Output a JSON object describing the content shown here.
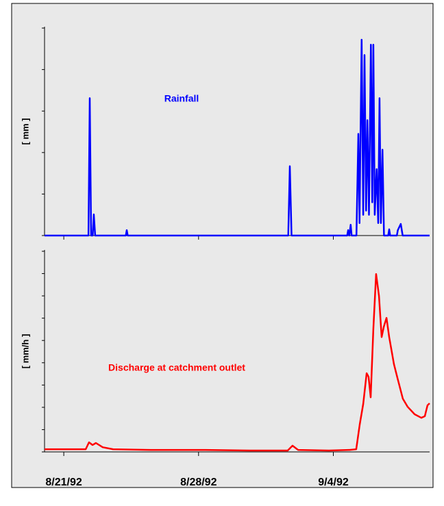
{
  "chart_data": [
    {
      "type": "line",
      "ylabel": "[ mm ]",
      "annotation": "Rainfall",
      "xlim": [
        0,
        20
      ],
      "ylim": [
        0,
        5
      ],
      "yticks": [
        0,
        1,
        2,
        3,
        4,
        5
      ],
      "series": [
        {
          "name": "Rainfall",
          "color": "#0000ff",
          "x": [
            0,
            2.28,
            2.35,
            2.42,
            2.5,
            2.56,
            2.63,
            4.22,
            4.27,
            4.32,
            12.66,
            12.74,
            12.83,
            15.72,
            15.77,
            15.83,
            15.9,
            15.95,
            16.2,
            16.3,
            16.36,
            16.47,
            16.55,
            16.62,
            16.7,
            16.77,
            16.85,
            16.95,
            17.02,
            17.08,
            17.15,
            17.25,
            17.33,
            17.4,
            17.47,
            17.55,
            17.63,
            17.85,
            17.9,
            17.95,
            18.3,
            18.35,
            18.5,
            18.6,
            20
          ],
          "values": [
            0,
            0,
            3.31,
            0,
            0,
            0.51,
            0,
            0,
            0.13,
            0,
            0,
            1.67,
            0,
            0,
            0.13,
            0,
            0.26,
            0,
            0,
            2.45,
            0.3,
            4.72,
            0.5,
            4.35,
            0.6,
            2.78,
            0.5,
            4.6,
            0.8,
            4.6,
            0.5,
            1.6,
            0.3,
            3.31,
            0.3,
            2.07,
            0,
            0,
            0.15,
            0,
            0,
            0.13,
            0.28,
            0,
            0
          ]
        }
      ]
    },
    {
      "type": "line",
      "ylabel": "[ mm/h ]",
      "annotation": "Discharge at catchment outlet",
      "xlim": [
        0,
        20
      ],
      "ylim": [
        0,
        9
      ],
      "yticks": [
        0,
        1,
        2,
        3,
        4,
        5,
        6,
        7,
        8,
        9
      ],
      "xticks": [
        {
          "value": 1,
          "label": "8/21/92"
        },
        {
          "value": 8,
          "label": "8/28/92"
        },
        {
          "value": 15,
          "label": "9/4/92"
        }
      ],
      "series": [
        {
          "name": "Discharge at catchment outlet",
          "color": "#ff0000",
          "x": [
            0,
            2.14,
            2.31,
            2.49,
            2.67,
            3.02,
            3.56,
            5.52,
            8.36,
            10.68,
            12.63,
            12.88,
            13.17,
            14.77,
            15.84,
            16.19,
            16.37,
            16.55,
            16.73,
            16.83,
            16.94,
            17.08,
            17.22,
            17.37,
            17.51,
            17.62,
            17.76,
            17.9,
            18.15,
            18.33,
            18.61,
            18.86,
            19.22,
            19.57,
            19.75,
            19.89,
            20
          ],
          "values": [
            0.12,
            0.12,
            0.43,
            0.31,
            0.4,
            0.21,
            0.12,
            0.09,
            0.09,
            0.06,
            0.06,
            0.28,
            0.09,
            0.06,
            0.09,
            0.12,
            1.23,
            2.15,
            3.53,
            3.37,
            2.45,
            5.52,
            7.98,
            7.0,
            5.15,
            5.61,
            6.01,
            5.15,
            3.93,
            3.31,
            2.39,
            2.02,
            1.69,
            1.53,
            1.6,
            2.09,
            2.18
          ]
        }
      ]
    }
  ]
}
